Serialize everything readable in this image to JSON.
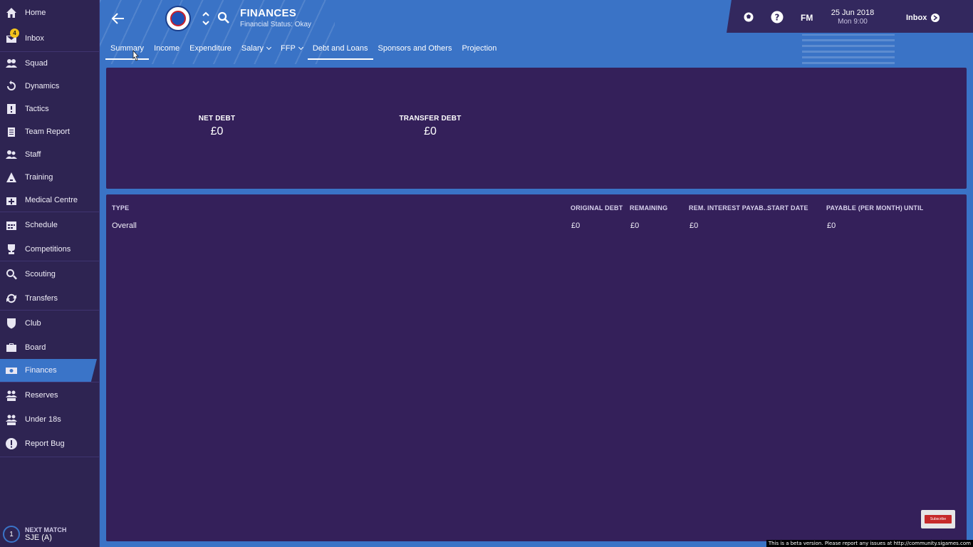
{
  "sidebar": {
    "items": [
      {
        "label": "Home",
        "icon": "home-icon"
      },
      {
        "label": "Inbox",
        "icon": "inbox-icon",
        "badge": "4"
      },
      {
        "label": "Squad",
        "icon": "squad-icon"
      },
      {
        "label": "Dynamics",
        "icon": "dynamics-icon"
      },
      {
        "label": "Tactics",
        "icon": "tactics-icon"
      },
      {
        "label": "Team Report",
        "icon": "clipboard-icon"
      },
      {
        "label": "Staff",
        "icon": "staff-icon"
      },
      {
        "label": "Training",
        "icon": "training-icon"
      },
      {
        "label": "Medical Centre",
        "icon": "medical-icon"
      },
      {
        "label": "Schedule",
        "icon": "calendar-icon"
      },
      {
        "label": "Competitions",
        "icon": "trophy-icon"
      },
      {
        "label": "Scouting",
        "icon": "scouting-icon"
      },
      {
        "label": "Transfers",
        "icon": "transfers-icon"
      },
      {
        "label": "Club",
        "icon": "shield-icon"
      },
      {
        "label": "Board",
        "icon": "briefcase-icon"
      },
      {
        "label": "Finances",
        "icon": "money-icon",
        "active": true
      },
      {
        "label": "Reserves",
        "icon": "reserves-icon"
      },
      {
        "label": "Under 18s",
        "icon": "under18-icon"
      },
      {
        "label": "Report Bug",
        "icon": "alert-icon"
      }
    ],
    "next_match": {
      "label": "NEXT MATCH",
      "value": "SJE (A)",
      "count": "1"
    }
  },
  "header": {
    "title": "FINANCES",
    "subtitle": "Financial Status: Okay",
    "tabs": [
      {
        "label": "Summary"
      },
      {
        "label": "Income"
      },
      {
        "label": "Expenditure"
      },
      {
        "label": "Salary",
        "dropdown": true
      },
      {
        "label": "FFP",
        "dropdown": true
      },
      {
        "label": "Debt and Loans",
        "selected": true
      },
      {
        "label": "Sponsors and Others"
      },
      {
        "label": "Projection"
      }
    ]
  },
  "topbar": {
    "fm_label": "FM",
    "date": "25 Jun 2018",
    "time": "Mon 9:00",
    "inbox_label": "Inbox"
  },
  "summary": {
    "net_debt_label": "NET DEBT",
    "net_debt_value": "£0",
    "transfer_debt_label": "TRANSFER DEBT",
    "transfer_debt_value": "£0"
  },
  "table": {
    "columns": [
      "TYPE",
      "ORIGINAL DEBT",
      "REMAINING",
      "REM. INTEREST PAYAB...",
      "START DATE",
      "PAYABLE (PER MONTH)",
      "UNTIL"
    ],
    "rows": [
      {
        "type": "Overall",
        "original_debt": "£0",
        "remaining": "£0",
        "rem_interest": "£0",
        "start_date": "",
        "payable": "£0",
        "until": ""
      }
    ]
  },
  "footer": {
    "subscribe_label": "Subscribe",
    "beta_notice": "This is a beta version. Please report any issues at http://community.sigames.com"
  },
  "colors": {
    "accent": "#3a73c6",
    "panel": "#34205a",
    "sidebar": "#2e2452",
    "badge": "#f2c21b"
  }
}
